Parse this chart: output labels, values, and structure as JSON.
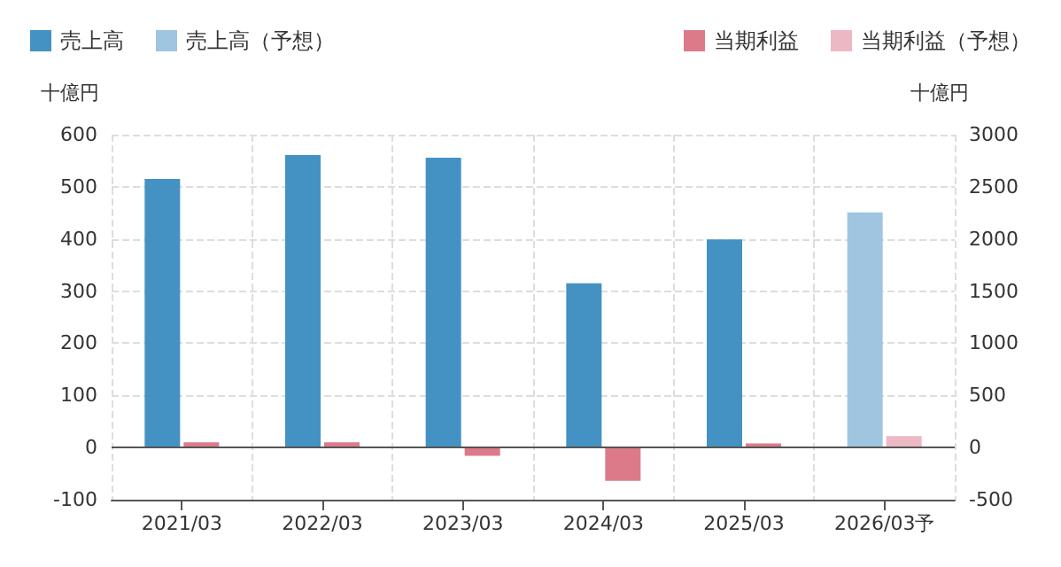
{
  "chart_data": {
    "type": "bar",
    "stacked": true,
    "ylabel": "十億円",
    "y2label": "十億円",
    "categories": [
      "2021/03",
      "2022/03",
      "2023/03",
      "2024/03",
      "2025/03",
      "2026/03予"
    ],
    "series": [
      {
        "name": "売上高",
        "color": "#4392c3",
        "values": [
          515,
          561,
          556,
          315,
          399,
          null
        ]
      },
      {
        "name": "売上高（予想）",
        "color": "#9fc5e0",
        "values": [
          null,
          null,
          null,
          null,
          null,
          451
        ]
      },
      {
        "name": "当期利益",
        "color": "#dc7a8a",
        "axis": "y2",
        "values": [
          50,
          50,
          -80,
          -320,
          40,
          null
        ]
      },
      {
        "name": "当期利益（予想）",
        "color": "#ecb8c3",
        "axis": "y2",
        "values": [
          null,
          null,
          null,
          null,
          null,
          110
        ]
      }
    ],
    "ylim": [
      -100,
      600
    ],
    "yticks": [
      -100,
      0,
      100,
      200,
      300,
      400,
      500,
      600
    ],
    "y2lim": [
      -500,
      3000
    ],
    "y2ticks": [
      -500,
      0,
      500,
      1000,
      1500,
      2000,
      2500,
      3000
    ],
    "ref_lines": [
      {
        "axis": "y",
        "value": 0,
        "color": "#555555"
      }
    ],
    "grid": true,
    "legend": "top"
  }
}
